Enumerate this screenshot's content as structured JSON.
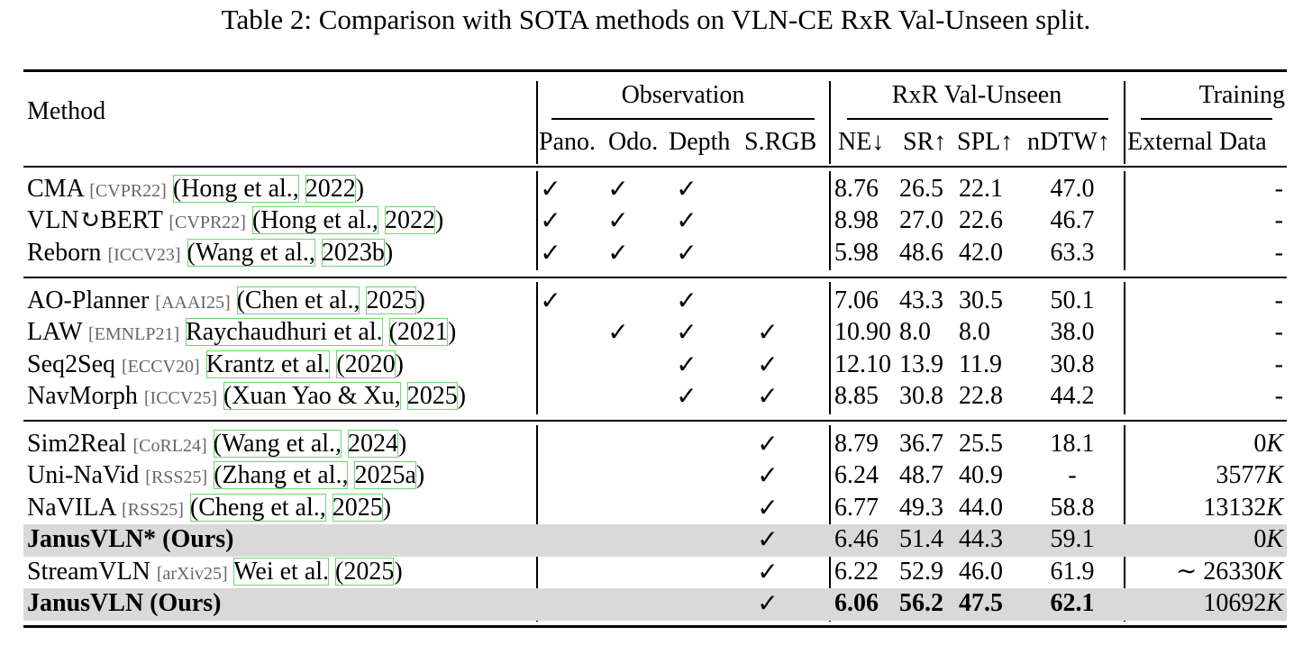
{
  "caption": "Table 2: Comparison with SOTA methods on VLN-CE RxR Val-Unseen split.",
  "header": {
    "method": "Method",
    "groups": [
      "Observation",
      "RxR Val-Unseen",
      "Training"
    ],
    "columns": [
      "Pano.",
      "Odo.",
      "Depth",
      "S.RGB",
      "NE↓",
      "SR↑",
      "SPL↑",
      "nDTW↑",
      "External Data"
    ]
  },
  "check_symbol": "✓",
  "rows": [
    {
      "name": "CMA",
      "venue": "[CVPR22]",
      "cite": [
        "(Hong et al.,",
        "2022",
        ")"
      ],
      "checks": [
        true,
        true,
        true,
        false
      ],
      "ne": "8.76",
      "sr": "26.5",
      "spl": "22.1",
      "ndtw": "47.0",
      "ext": "-",
      "bold": false,
      "shaded": false
    },
    {
      "name": "VLN↻BERT",
      "venue": "[CVPR22]",
      "cite": [
        "(Hong et al.,",
        "2022",
        ")"
      ],
      "checks": [
        true,
        true,
        true,
        false
      ],
      "ne": "8.98",
      "sr": "27.0",
      "spl": "22.6",
      "ndtw": "46.7",
      "ext": "-",
      "bold": false,
      "shaded": false
    },
    {
      "name": "Reborn",
      "venue": "[ICCV23]",
      "cite": [
        "(Wang et al.,",
        "2023b",
        ")"
      ],
      "checks": [
        true,
        true,
        true,
        false
      ],
      "ne": "5.98",
      "sr": "48.6",
      "spl": "42.0",
      "ndtw": "63.3",
      "ext": "-",
      "bold": false,
      "shaded": false
    },
    {
      "name": "AO-Planner",
      "venue": "[AAAI25]",
      "cite": [
        "(Chen et al.,",
        "2025",
        ")"
      ],
      "checks": [
        true,
        false,
        true,
        false
      ],
      "ne": "7.06",
      "sr": "43.3",
      "spl": "30.5",
      "ndtw": "50.1",
      "ext": "-",
      "bold": false,
      "shaded": false
    },
    {
      "name": "LAW",
      "venue": "[EMNLP21]",
      "cite": [
        "Raychaudhuri et al.",
        "(2021",
        ")"
      ],
      "checks": [
        false,
        true,
        true,
        true
      ],
      "ne": "10.90",
      "sr": "8.0",
      "spl": "8.0",
      "ndtw": "38.0",
      "ext": "-",
      "bold": false,
      "shaded": false
    },
    {
      "name": "Seq2Seq",
      "venue": "[ECCV20]",
      "cite": [
        "Krantz et al.",
        "(2020",
        ")"
      ],
      "checks": [
        false,
        false,
        true,
        true
      ],
      "ne": "12.10",
      "sr": "13.9",
      "spl": "11.9",
      "ndtw": "30.8",
      "ext": "-",
      "bold": false,
      "shaded": false
    },
    {
      "name": "NavMorph",
      "venue": "[ICCV25]",
      "cite": [
        "(Xuan Yao & Xu,",
        "2025",
        ")"
      ],
      "checks": [
        false,
        false,
        true,
        true
      ],
      "ne": "8.85",
      "sr": "30.8",
      "spl": "22.8",
      "ndtw": "44.2",
      "ext": "-",
      "bold": false,
      "shaded": false
    },
    {
      "name": "Sim2Real",
      "venue": "[CoRL24]",
      "cite": [
        "(Wang et al.,",
        "2024",
        ")"
      ],
      "checks": [
        false,
        false,
        false,
        true
      ],
      "ne": "8.79",
      "sr": "36.7",
      "spl": "25.5",
      "ndtw": "18.1",
      "ext": "0",
      "ext_unit": "K",
      "bold": false,
      "shaded": false
    },
    {
      "name": "Uni-NaVid",
      "venue": "[RSS25]",
      "cite": [
        "(Zhang et al.,",
        "2025a",
        ")"
      ],
      "checks": [
        false,
        false,
        false,
        true
      ],
      "ne": "6.24",
      "sr": "48.7",
      "spl": "40.9",
      "ndtw": "-",
      "ext": "3577",
      "ext_unit": "K",
      "bold": false,
      "shaded": false
    },
    {
      "name": "NaVILA",
      "venue": "[RSS25]",
      "cite": [
        "(Cheng et al.,",
        "2025",
        ")"
      ],
      "checks": [
        false,
        false,
        false,
        true
      ],
      "ne": "6.77",
      "sr": "49.3",
      "spl": "44.0",
      "ndtw": "58.8",
      "ext": "13132",
      "ext_unit": "K",
      "bold": false,
      "shaded": false
    },
    {
      "name": "JanusVLN* (Ours)",
      "venue": "",
      "cite": [],
      "checks": [
        false,
        false,
        false,
        true
      ],
      "ne": "6.46",
      "sr": "51.4",
      "spl": "44.3",
      "ndtw": "59.1",
      "ext": "0",
      "ext_unit": "K",
      "bold": true,
      "shaded": true
    },
    {
      "name": "StreamVLN",
      "venue": "[arXiv25]",
      "cite": [
        "Wei et al.",
        "(2025",
        ")"
      ],
      "checks": [
        false,
        false,
        false,
        true
      ],
      "ne": "6.22",
      "sr": "52.9",
      "spl": "46.0",
      "ndtw": "61.9",
      "ext": "∼ 26330",
      "ext_unit": "K",
      "bold": false,
      "shaded": false
    },
    {
      "name": "JanusVLN (Ours)",
      "venue": "",
      "cite": [],
      "checks": [
        false,
        false,
        false,
        true
      ],
      "ne": "6.06",
      "sr": "56.2",
      "spl": "47.5",
      "ndtw": "62.1",
      "ext": "10692",
      "ext_unit": "K",
      "bold": true,
      "shaded": true,
      "bold_metrics": true
    }
  ]
}
